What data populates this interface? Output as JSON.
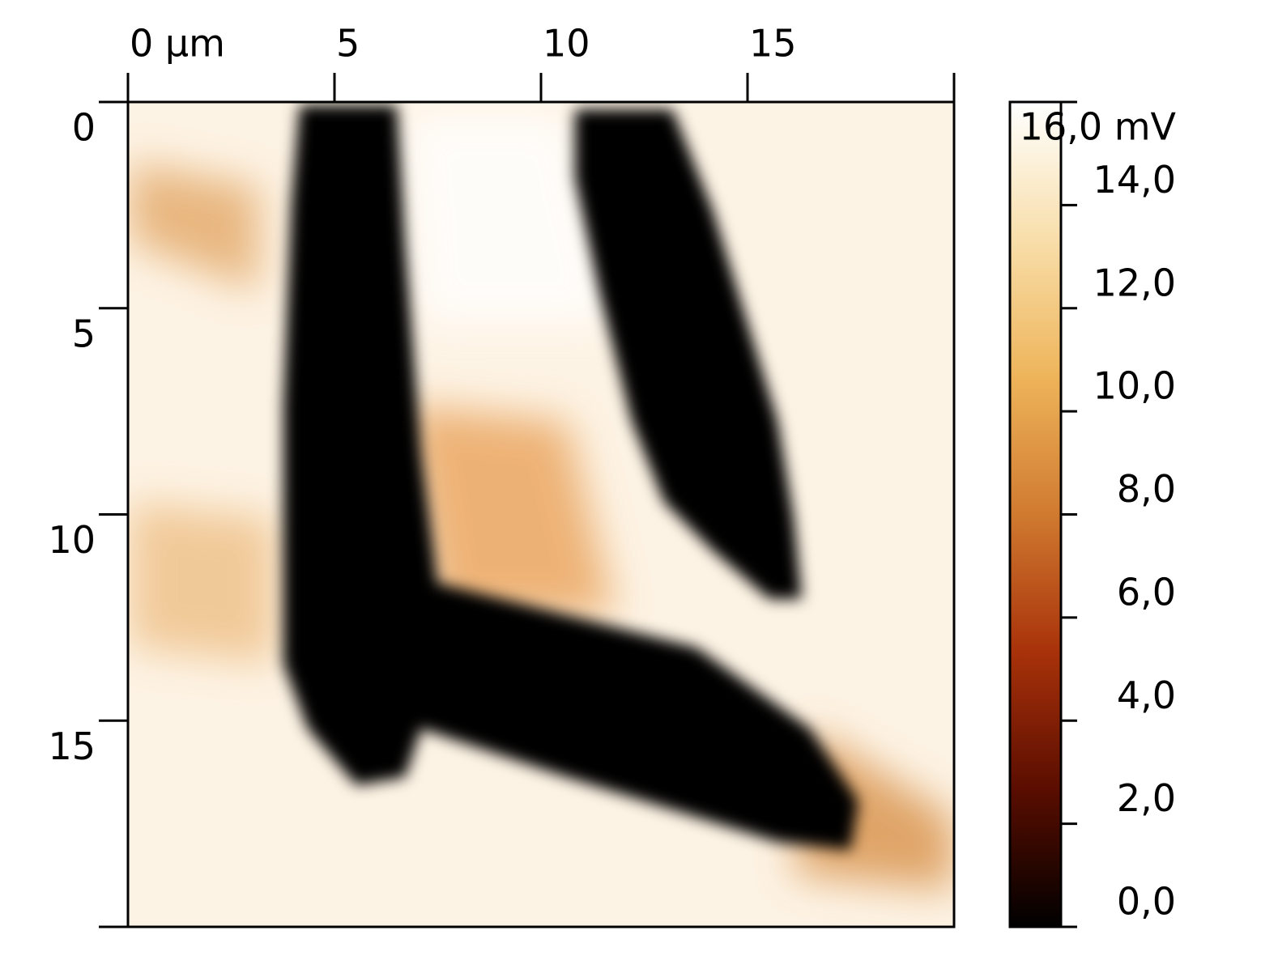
{
  "chart_data": {
    "type": "heatmap",
    "xlim": [
      0,
      20
    ],
    "ylim": [
      0,
      20
    ],
    "xticks": [
      {
        "value": 0,
        "label": "0 µm"
      },
      5,
      10,
      15
    ],
    "yticks": [
      0,
      5,
      10,
      15
    ],
    "colorbar": {
      "clim": [
        0,
        16
      ],
      "colors": [
        "#000000",
        "#5a0d00",
        "#a8320a",
        "#d07a30",
        "#eeb45a",
        "#f8deaa",
        "#ffffff"
      ],
      "ticks": [
        {
          "value": 0,
          "label": "0,0"
        },
        {
          "value": 2,
          "label": "2,0"
        },
        {
          "value": 4,
          "label": "4,0"
        },
        {
          "value": 6,
          "label": "6,0"
        },
        {
          "value": 8,
          "label": "8,0"
        },
        {
          "value": 10,
          "label": "10,0"
        },
        {
          "value": 12,
          "label": "12,0"
        },
        {
          "value": 14,
          "label": "14,0"
        },
        {
          "value": 16,
          "label": "16,0 mV"
        }
      ]
    }
  }
}
